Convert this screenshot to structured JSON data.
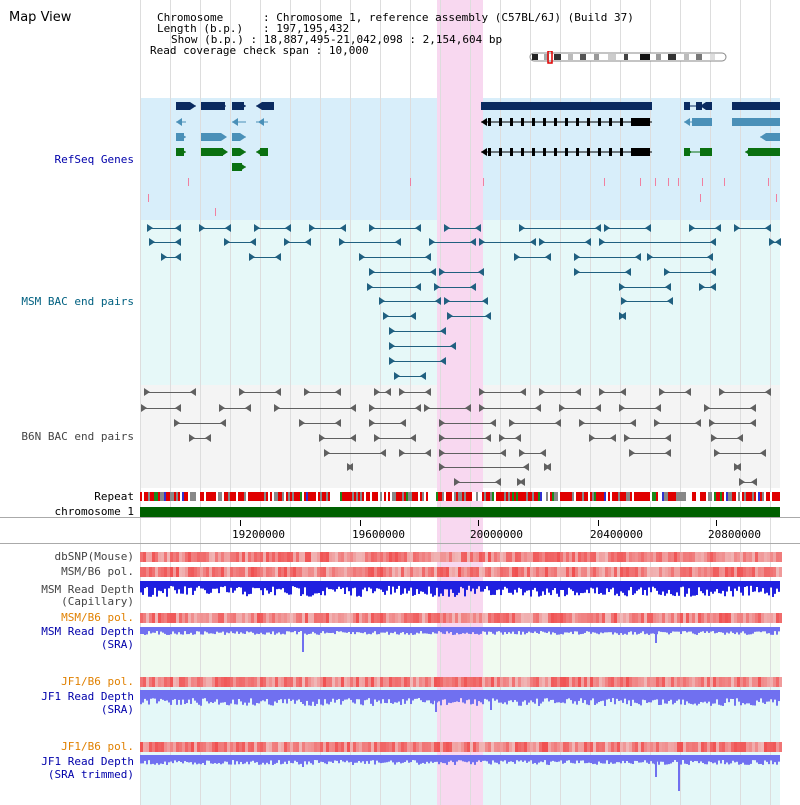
{
  "title": "Map View",
  "info": {
    "chromosome_label": "Chromosome",
    "chromosome_value": "Chromosome 1, reference assembly (C57BL/6J) (Build 37)",
    "length_label": "Length (b.p.)",
    "length_value": "197,195,432",
    "show_label": "Show (b.p.)",
    "show_value": "18,887,495-21,042,098 : 2,154,604 bp",
    "coverage_label": "Read coverage check span",
    "coverage_value": "10,000"
  },
  "tracks": {
    "refseq": "RefSeq Genes",
    "msm_bac": "MSM BAC end pairs",
    "b6n_bac": "B6N BAC end pairs",
    "repeat": "Repeat",
    "chromosome": "chromosome 1",
    "dbsnp": "dbSNP(Mouse)",
    "msm_b6_pol_1": "MSM/B6 pol.",
    "msm_depth_cap_1": "MSM Read Depth",
    "msm_depth_cap_2": "(Capillary)",
    "msm_b6_pol_2": "MSM/B6 pol.",
    "msm_depth_sra_1": "MSM Read Depth",
    "msm_depth_sra_2": "(SRA)",
    "jf1_b6_pol_1": "JF1/B6 pol.",
    "jf1_depth_sra_1": "JF1 Read Depth",
    "jf1_depth_sra_2": "(SRA)",
    "jf1_b6_pol_2": "JF1/B6 pol.",
    "jf1_depth_trim_1": "JF1 Read Depth",
    "jf1_depth_trim_2": "(SRA trimmed)"
  },
  "axis_ticks": [
    "19200000",
    "19600000",
    "20000000",
    "20400000",
    "20800000"
  ],
  "colors": {
    "highlight": "#f8d8f0",
    "refseq_bg": "#d8eefa",
    "msm_bg": "#e6f8f8",
    "b6n_bg": "#f4f4f4",
    "gene_navy": "#0a2a60",
    "gene_steel": "#4a90b8",
    "gene_green": "#0a7010",
    "bac_teal": "#206080",
    "bac_gray": "#606060",
    "repeat_red": "#e00000",
    "chromosome_green": "#006000",
    "depth_blue": "#2020e0",
    "depth_light": "#7070f0",
    "snp_red": "#f05050"
  }
}
